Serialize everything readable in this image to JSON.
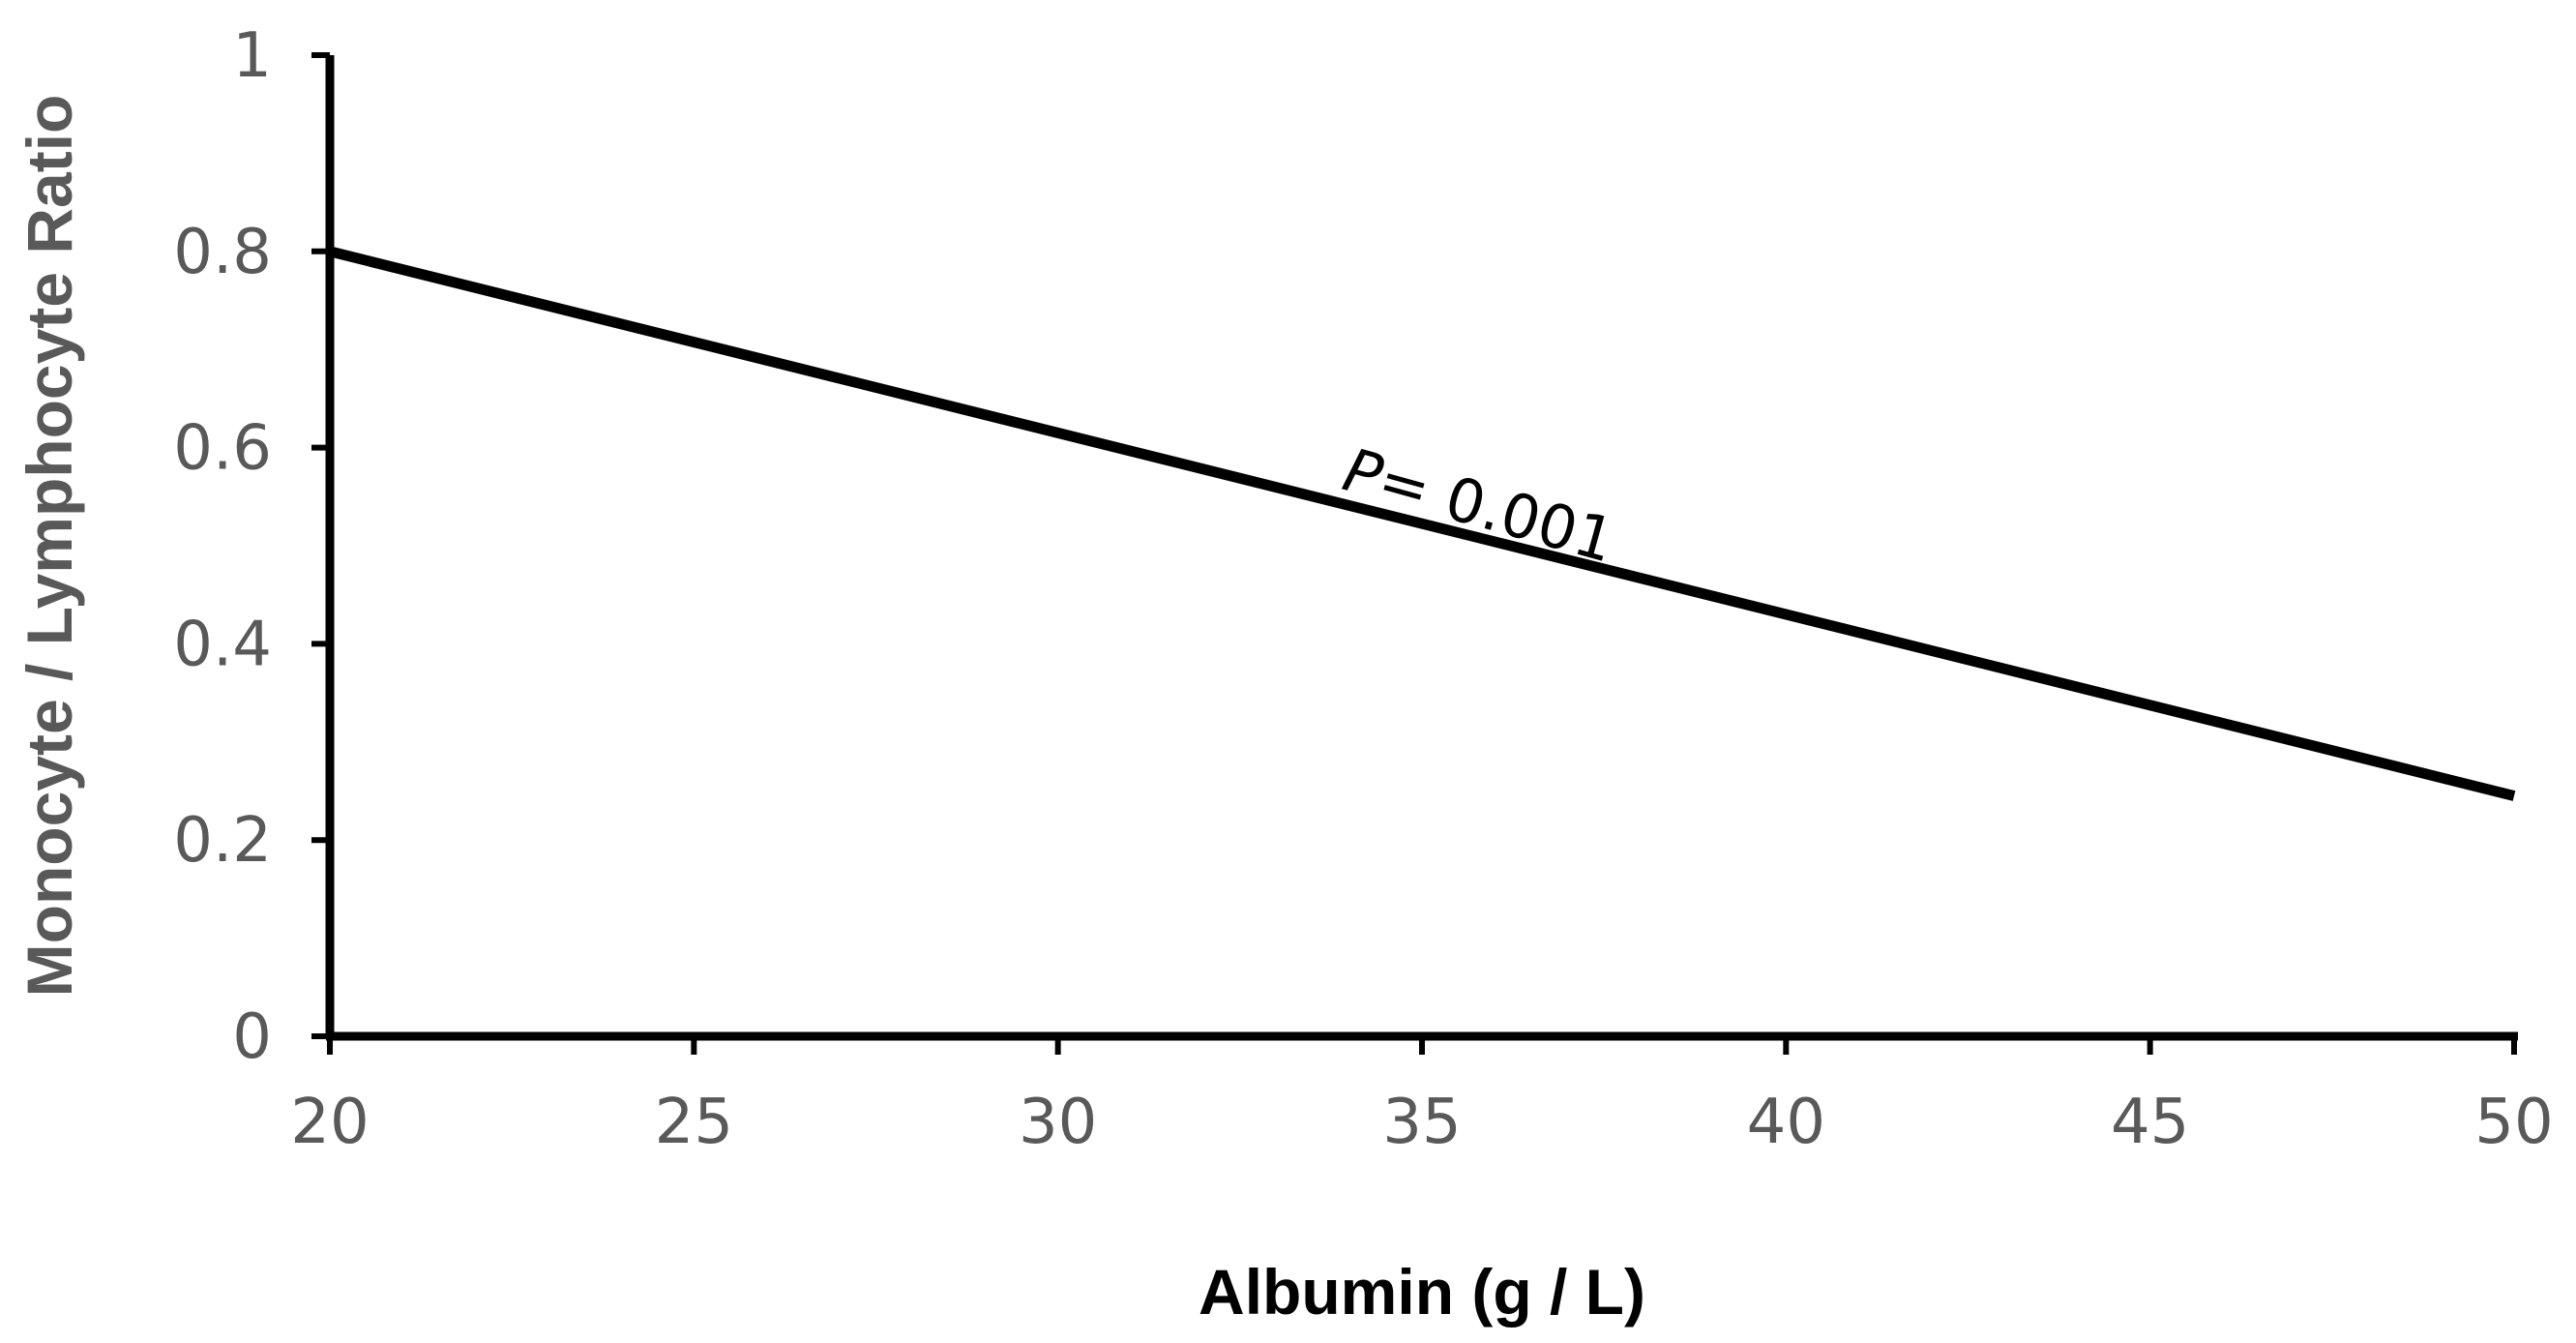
{
  "chart_data": {
    "type": "line",
    "title": "",
    "xlabel": "Albumin (g / L)",
    "ylabel": "Monocyte / Lymphocyte Ratio",
    "xlim": [
      20,
      50
    ],
    "ylim": [
      0,
      1
    ],
    "x_ticks": [
      20,
      25,
      30,
      35,
      40,
      45,
      50
    ],
    "x_tick_labels": [
      "20",
      "25",
      "30",
      "35",
      "40",
      "45",
      "50"
    ],
    "y_ticks": [
      0,
      0.2,
      0.4,
      0.6,
      0.8,
      1
    ],
    "y_tick_labels": [
      "0",
      "0.2",
      "0.4",
      "0.6",
      "0.8",
      "1"
    ],
    "grid": false,
    "legend": "none",
    "series": [
      {
        "color": "#000000",
        "x": [
          20,
          50
        ],
        "y": [
          0.8,
          0.245
        ]
      }
    ],
    "annotations": [
      {
        "text_prefix": "P",
        "text": "= 0.001",
        "x": 36,
        "y": 0.6
      }
    ],
    "colors": {
      "axis": "#000000",
      "tick_label": "#595959",
      "ylabel": "#595959",
      "xlabel": "#000000"
    }
  }
}
